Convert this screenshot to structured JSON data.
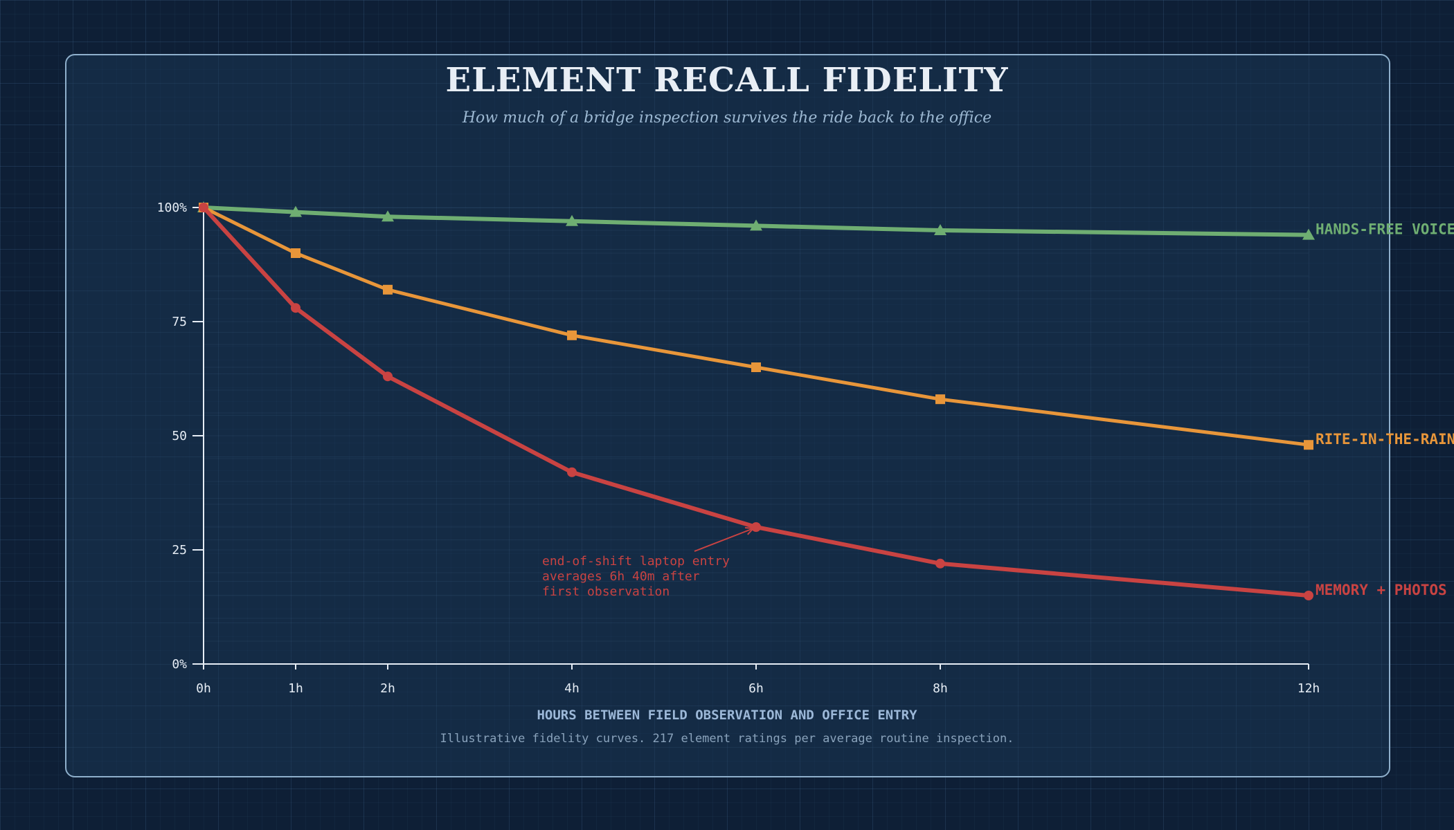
{
  "colors": {
    "memory": "#c94342",
    "rite": "#e8963a",
    "voice": "#6fae72",
    "axis": "#e6edf5"
  },
  "chart_data": {
    "type": "line",
    "title": "ELEMENT RECALL FIDELITY",
    "subtitle": "How much of a bridge inspection survives the ride back to the office",
    "xlabel": "HOURS BETWEEN FIELD OBSERVATION AND OFFICE ENTRY",
    "ylabel": "",
    "footnote": "Illustrative fidelity curves. 217 element ratings per average routine inspection.",
    "xlim": [
      0,
      12
    ],
    "ylim": [
      0,
      100
    ],
    "x_ticks": [
      0,
      1,
      2,
      4,
      6,
      8,
      12
    ],
    "x_tick_labels": [
      "0h",
      "1h",
      "2h",
      "4h",
      "6h",
      "8h",
      "12h"
    ],
    "y_ticks": [
      0,
      25,
      50,
      75,
      100
    ],
    "y_tick_labels": [
      "0%",
      "25",
      "50",
      "75",
      "100%"
    ],
    "x": [
      0,
      1,
      2,
      4,
      6,
      8,
      12
    ],
    "series": [
      {
        "name": "HANDS-FREE VOICE",
        "key": "voice",
        "marker": "triangle",
        "values": [
          100,
          99,
          98,
          97,
          96,
          95,
          94
        ]
      },
      {
        "name": "RITE-IN-THE-RAIN",
        "key": "rite",
        "marker": "square",
        "values": [
          100,
          90,
          82,
          72,
          65,
          58,
          48
        ]
      },
      {
        "name": "MEMORY + PHOTOS",
        "key": "memory",
        "marker": "circle",
        "values": [
          100,
          78,
          63,
          42,
          30,
          22,
          15
        ]
      }
    ],
    "annotation": {
      "lines": [
        "end-of-shift laptop entry",
        "averages 6h 40m after",
        "first observation"
      ],
      "series_key": "memory",
      "target_x": 6,
      "target_y": 30
    }
  }
}
